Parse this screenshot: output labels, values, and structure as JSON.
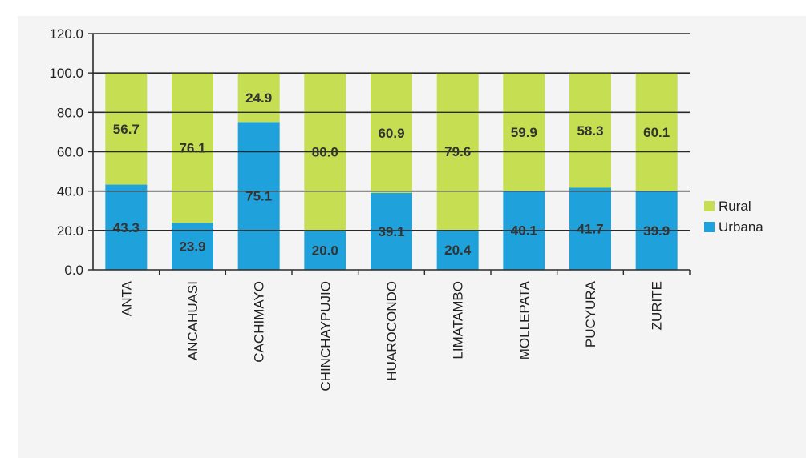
{
  "chart_data": {
    "type": "bar",
    "stacked": true,
    "categories": [
      "ANTA",
      "ANCAHUASI",
      "CACHIMAYO",
      "CHINCHAYPUJIO",
      "HUAROCONDO",
      "LIMATAMBO",
      "MOLLEPATA",
      "PUCYURA",
      "ZURITE"
    ],
    "series": [
      {
        "name": "Urbana",
        "values": [
          43.3,
          23.9,
          75.1,
          20.0,
          39.1,
          20.4,
          40.1,
          41.7,
          39.9
        ],
        "color": "#1fa2dc"
      },
      {
        "name": "Rural",
        "values": [
          56.7,
          76.1,
          24.9,
          80.0,
          60.9,
          79.6,
          59.9,
          58.3,
          60.1
        ],
        "color": "#c5de52"
      }
    ],
    "labels": {
      "Urbana": [
        "43.3",
        "23.9",
        "75.1",
        "20.0",
        "39.1",
        "20.4",
        "40.1",
        "41.7",
        "39.9"
      ],
      "Rural": [
        "56.7",
        "76.1",
        "24.9",
        "80.0",
        "60.9",
        "79.6",
        "59.9",
        "58.3",
        "60.1"
      ]
    },
    "yticks": [
      "0.0",
      "20.0",
      "40.0",
      "60.0",
      "80.0",
      "100.0",
      "120.0"
    ],
    "ylim": [
      0,
      120
    ],
    "grid": true,
    "legend": "right",
    "legend_order": [
      "Rural",
      "Urbana"
    ]
  }
}
